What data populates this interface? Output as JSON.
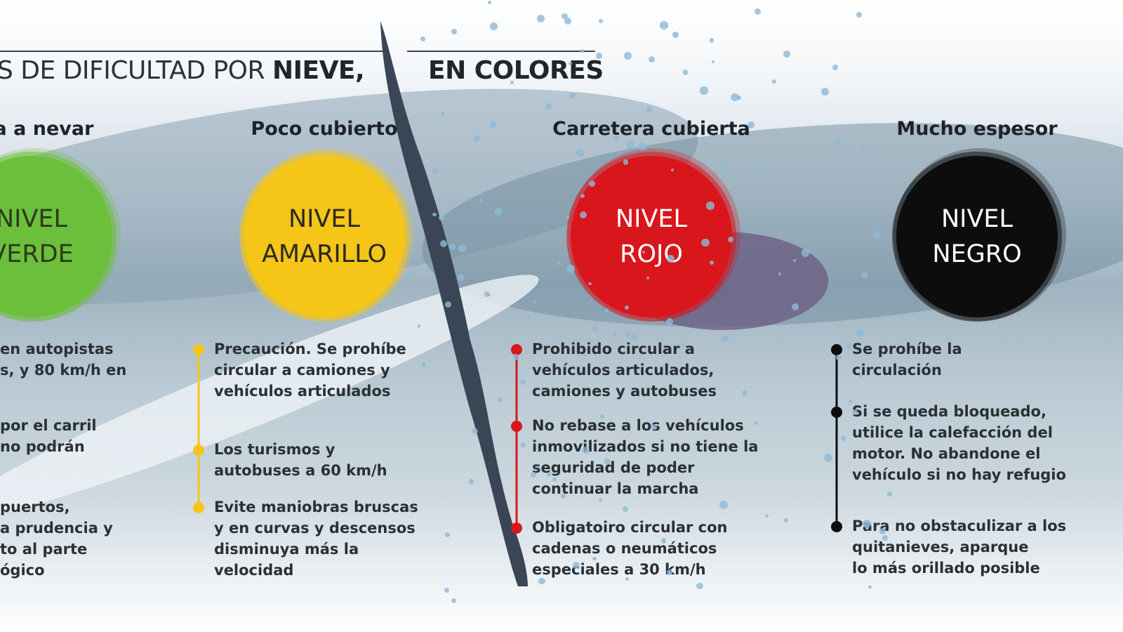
{
  "title": {
    "prefix": "S DE DIFICULTAD POR ",
    "bold1": "NIEVE,",
    "bold2": "EN COLORES"
  },
  "levels": [
    {
      "header": "nza a nevar",
      "line1": "NIVEL",
      "line2": "VERDE",
      "color": "#6cbf3a",
      "text_color": "#2a3a20",
      "bullets": [
        [
          "en autopistas",
          "s, y 80 km/h en"
        ],
        [
          "por el carril",
          "no podrán"
        ],
        [
          "puertos,",
          "a prudencia y",
          "to al parte",
          "ógico"
        ]
      ]
    },
    {
      "header": "Poco cubierto",
      "line1": "NIVEL",
      "line2": "AMARILLO",
      "color": "#f5c518",
      "text_color": "#2a2a20",
      "bullets": [
        [
          "Precaución. Se prohíbe",
          "circular a camiones y",
          "vehículos articulados"
        ],
        [
          "Los turismos y",
          "autobuses a 60 km/h"
        ],
        [
          "Evite maniobras bruscas",
          "y en curvas y descensos",
          "disminuya más la",
          "velocidad"
        ]
      ]
    },
    {
      "header": "Carretera cubierta",
      "line1": "NIVEL",
      "line2": "ROJO",
      "color": "#d9161c",
      "text_color": "#ffffff",
      "bullets": [
        [
          "Prohibido circular a",
          "vehículos articulados,",
          "camiones y autobuses"
        ],
        [
          "No rebase a los vehículos",
          "inmovilizados si no tiene la",
          "seguridad de poder",
          "continuar la marcha"
        ],
        [
          "Obligatoiro circular con",
          "cadenas o neumáticos",
          "especiales a 30 km/h"
        ]
      ]
    },
    {
      "header": "Mucho espesor",
      "line1": "NIVEL",
      "line2": "NEGRO",
      "color": "#0d0d0d",
      "text_color": "#ffffff",
      "bullets": [
        [
          "Se prohíbe la",
          "circulación"
        ],
        [
          "Si se queda bloqueado,",
          "utilice la calefacción del",
          "motor. No abandone  el",
          "vehículo si no hay refugio"
        ],
        [
          "Para no obstaculizar a los",
          "quitanieves, aparque",
          "lo más orillado posible"
        ]
      ]
    }
  ]
}
